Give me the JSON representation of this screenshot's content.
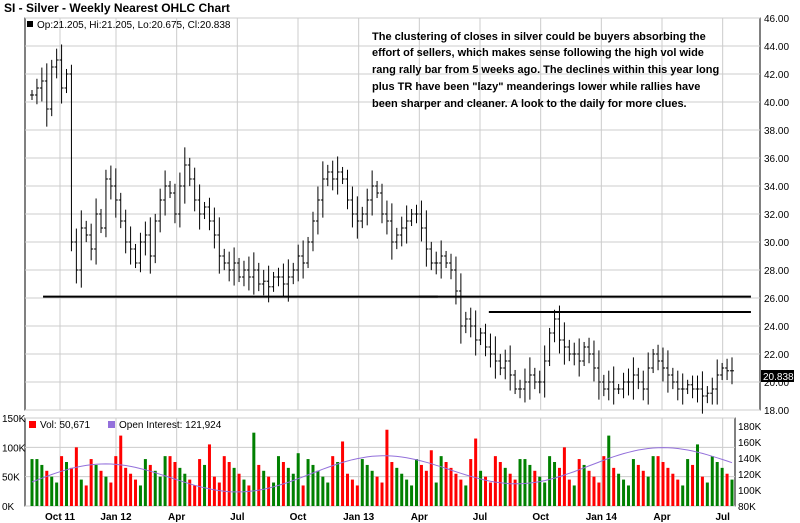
{
  "chart_data": [
    {
      "type": "ohlc",
      "title": "SI - Silver - Weekly Nearest OHLC Chart",
      "ohlc_readout": "Op:21.205, Hi:21.205, Lo:20.675, Cl:20.838",
      "last_value_label": "20.838",
      "ylim": [
        18,
        46
      ],
      "y_ticks": [
        "18.00",
        "20.00",
        "22.00",
        "24.00",
        "26.00",
        "28.00",
        "30.00",
        "32.00",
        "34.00",
        "36.00",
        "38.00",
        "40.00",
        "42.00",
        "44.00",
        "46.00"
      ],
      "x_tick_labels": [
        "Oct 11",
        "Jan 12",
        "Apr",
        "Jul",
        "Oct",
        "Jan 13",
        "Apr",
        "Jul",
        "Oct",
        "Jan 14",
        "Apr",
        "Jul"
      ],
      "annotation": [
        "The clustering of closes in silver could be buyers absorbing the",
        "effort of sellers, which makes sense following the high vol wide",
        "rang rally bar from 5 weeks ago.  The declines within this year long",
        "plus TR have been \"lazy\" meanderings lower while rallies have",
        "been sharper and cleaner.  A look to the daily for more clues."
      ],
      "support_resistance_levels": [
        {
          "price": 26.1,
          "from_week": 3,
          "to_week": 102
        },
        {
          "price": 26.1,
          "from_week": 105,
          "to_week": 187
        },
        {
          "price": 25.0,
          "from_week": 124,
          "to_week": 187
        }
      ],
      "weekly_close": [
        40.5,
        41.0,
        41.5,
        39.5,
        42.5,
        43.0,
        41.0,
        42.0,
        30.0,
        28.0,
        31.0,
        30.5,
        29.5,
        32.0,
        31.0,
        34.5,
        34.0,
        33.0,
        31.5,
        30.0,
        29.5,
        28.5,
        30.0,
        30.5,
        29.0,
        31.5,
        33.0,
        34.0,
        33.5,
        32.0,
        34.0,
        35.5,
        34.5,
        33.0,
        32.0,
        32.5,
        31.5,
        30.5,
        29.0,
        28.5,
        28.0,
        28.5,
        27.5,
        28.0,
        27.5,
        28.0,
        27.0,
        27.2,
        26.8,
        27.5,
        27.5,
        27.0,
        27.5,
        28.0,
        29.0,
        28.5,
        30.0,
        31.5,
        33.0,
        34.5,
        35.0,
        34.5,
        35.0,
        34.5,
        33.0,
        32.0,
        31.5,
        32.0,
        33.0,
        34.0,
        33.5,
        32.0,
        31.5,
        30.0,
        30.5,
        31.0,
        31.5,
        32.0,
        32.0,
        31.0,
        29.5,
        28.5,
        28.5,
        29.0,
        28.5,
        28.0,
        26.5,
        24.0,
        24.5,
        24.0,
        23.0,
        23.5,
        22.5,
        22.0,
        21.5,
        21.0,
        21.5,
        20.5,
        19.5,
        19.5,
        20.0,
        20.5,
        20.0,
        20.0,
        21.5,
        23.5,
        24.5,
        23.0,
        22.5,
        22.0,
        22.0,
        21.5,
        22.5,
        22.0,
        21.0,
        20.0,
        19.5,
        20.0,
        19.5,
        19.5,
        20.0,
        20.0,
        20.5,
        20.0,
        19.5,
        21.0,
        22.0,
        21.5,
        21.0,
        20.5,
        20.0,
        19.5,
        19.5,
        19.8,
        19.5,
        19.5,
        19.0,
        19.2,
        19.5,
        20.5,
        21.0,
        20.8,
        20.8
      ]
    },
    {
      "type": "bar+line",
      "legend": [
        {
          "name": "Vol: 50,671",
          "color": "#ff0000"
        },
        {
          "name": "Open Interest: 121,924",
          "color": "#9370db"
        }
      ],
      "left_ticks": [
        "150K",
        "100K",
        "50K",
        "0K"
      ],
      "right_ticks": [
        "80K",
        "100K",
        "120K",
        "140K",
        "160K",
        "180K"
      ],
      "volume_ylim": [
        0,
        150000
      ],
      "open_interest_ylim": [
        80000,
        190000
      ],
      "volume_series_colors": {
        "up": "#008000",
        "down": "#ff0000"
      },
      "open_interest_color": "#9370db"
    }
  ],
  "colors": {
    "grid": "#cccccc",
    "bars": "#000000",
    "level_lines": "#000000",
    "last_value_box": "#000000"
  }
}
